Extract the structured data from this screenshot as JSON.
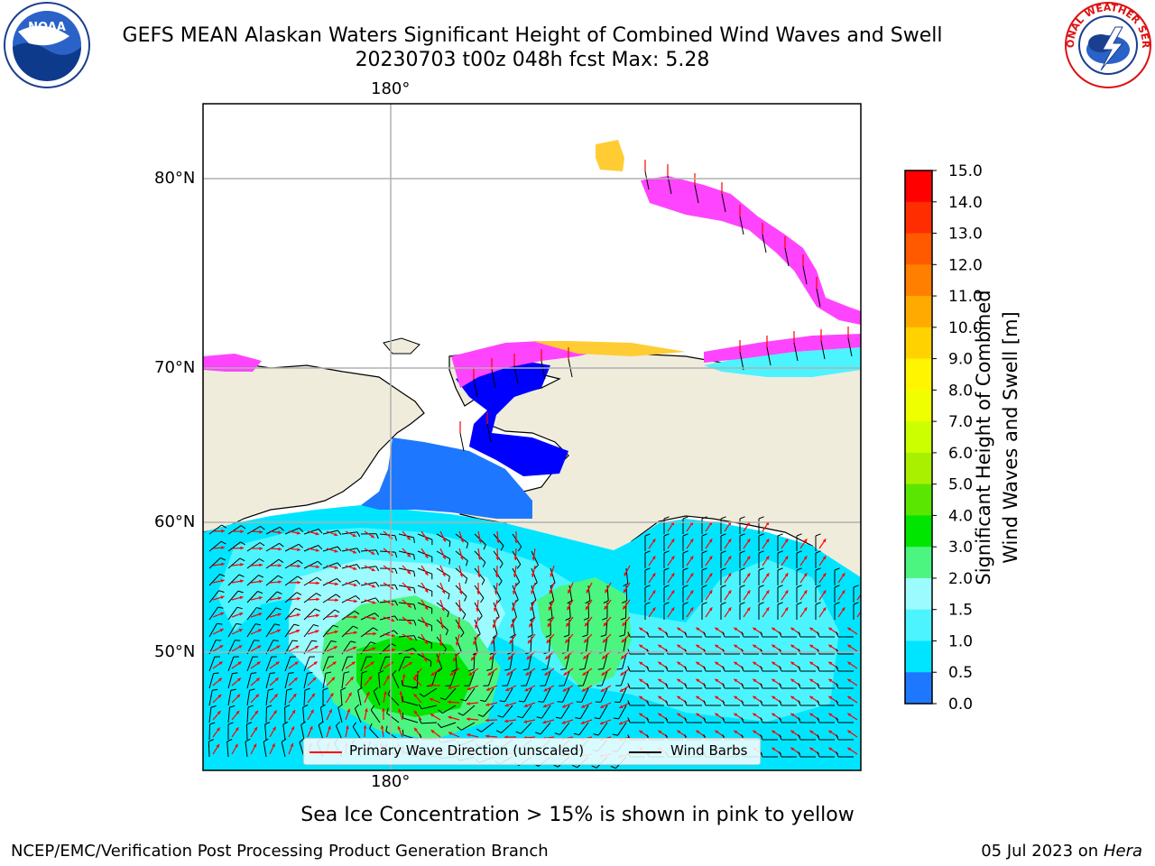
{
  "header": {
    "title_line1": "GEFS MEAN Alaskan Waters Significant Height of Combined Wind Waves and Swell",
    "title_line2": "20230703 t00z 048h fcst   Max: 5.28"
  },
  "logos": {
    "left": "NOAA",
    "right": "NATIONAL WEATHER SERVICE"
  },
  "map": {
    "lon_label_top": "180°",
    "lon_label_bottom": "180°",
    "lat_labels": [
      "80°N",
      "70°N",
      "60°N",
      "50°N"
    ],
    "colors": {
      "land": "#efecdc",
      "ocean_open": "#ffffff",
      "wave_low": "#00e5ff",
      "wave_mid": "#4cf4ff",
      "wave_light": "#9cfbff",
      "wave_green": "#4cf580",
      "wave_bright_green": "#00e600",
      "wave_blue": "#1e78ff",
      "wave_dark_blue": "#0000ff",
      "ice_pink": "#ff44ff",
      "ice_yellow": "#ffcc33",
      "arrow": "#ff0000",
      "barb": "#000000",
      "grid": "#b0b0b0"
    }
  },
  "legend": {
    "items": [
      {
        "label": "Primary Wave Direction (unscaled)",
        "color": "#ff0000"
      },
      {
        "label": "Wind Barbs",
        "color": "#000000"
      }
    ]
  },
  "colorbar": {
    "label_line1": "Significant Height of Combined",
    "label_line2": "Wind Waves and Swell [m]",
    "ticks": [
      "15.0",
      "14.0",
      "13.0",
      "12.0",
      "11.0",
      "10.0",
      "9.0",
      "8.0",
      "7.0",
      "6.0",
      "5.0",
      "4.0",
      "3.0",
      "2.0",
      "1.5",
      "1.0",
      "0.5",
      "0.0"
    ],
    "colors": [
      "#ff0000",
      "#ff2d00",
      "#ff5a00",
      "#ff8000",
      "#ffaa00",
      "#ffd200",
      "#fff500",
      "#f0ff00",
      "#ccff00",
      "#a8f000",
      "#5ae600",
      "#00e600",
      "#4cf580",
      "#9cfbff",
      "#4cf4ff",
      "#00e5ff",
      "#1e78ff",
      "#0000ff"
    ]
  },
  "footer": {
    "ice_note": "Sea Ice Concentration > 15% is shown in pink to yellow",
    "credit": "NCEP/EMC/Verification Post Processing Product Generation Branch",
    "date": "05 Jul 2023 on ",
    "machine": "Hera"
  }
}
